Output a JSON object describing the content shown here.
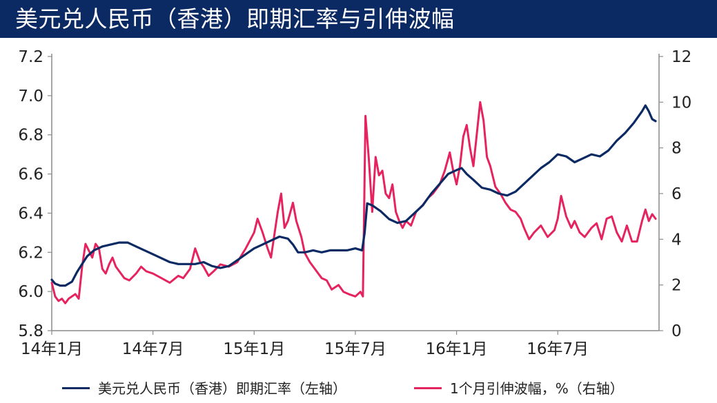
{
  "header": {
    "title": "美元兑人民币（香港）即期汇率与引伸波幅"
  },
  "colors": {
    "title_bg": "#0b2a63",
    "spot": "#0b2a63",
    "vol": "#e5245f",
    "axis": "#8a8a8a"
  },
  "chart_data": {
    "type": "line",
    "title": "美元兑人民币（香港）即期汇率与引伸波幅",
    "x_unit": "month",
    "x_start": "14年1月",
    "x_ticks": [
      "14年1月",
      "14年7月",
      "15年1月",
      "15年7月",
      "16年1月",
      "16年7月"
    ],
    "y_left": {
      "ticks": [
        "7.2",
        "7.0",
        "6.8",
        "6.6",
        "6.4",
        "6.2",
        "6.0",
        "5.8"
      ],
      "range": [
        5.8,
        7.2
      ]
    },
    "y_right": {
      "ticks": [
        "12",
        "10",
        "8",
        "6",
        "4",
        "2",
        "0"
      ],
      "range": [
        0,
        12
      ]
    },
    "series": [
      {
        "name": "美元兑人民币（香港）即期汇率（左轴）",
        "axis": "left",
        "points": [
          [
            0.0,
            6.06
          ],
          [
            0.2,
            6.04
          ],
          [
            0.5,
            6.03
          ],
          [
            0.8,
            6.03
          ],
          [
            1.2,
            6.05
          ],
          [
            1.5,
            6.1
          ],
          [
            1.8,
            6.14
          ],
          [
            2.1,
            6.18
          ],
          [
            2.5,
            6.21
          ],
          [
            3.0,
            6.23
          ],
          [
            3.5,
            6.24
          ],
          [
            4.0,
            6.25
          ],
          [
            4.5,
            6.25
          ],
          [
            5.0,
            6.23
          ],
          [
            5.5,
            6.21
          ],
          [
            6.0,
            6.19
          ],
          [
            6.5,
            6.17
          ],
          [
            7.0,
            6.15
          ],
          [
            7.5,
            6.14
          ],
          [
            8.0,
            6.14
          ],
          [
            8.5,
            6.14
          ],
          [
            9.0,
            6.15
          ],
          [
            9.5,
            6.13
          ],
          [
            10.0,
            6.12
          ],
          [
            10.5,
            6.13
          ],
          [
            11.0,
            6.16
          ],
          [
            11.5,
            6.19
          ],
          [
            12.0,
            6.22
          ],
          [
            12.5,
            6.24
          ],
          [
            13.0,
            6.26
          ],
          [
            13.5,
            6.28
          ],
          [
            14.0,
            6.27
          ],
          [
            14.3,
            6.24
          ],
          [
            14.6,
            6.2
          ],
          [
            15.0,
            6.2
          ],
          [
            15.5,
            6.21
          ],
          [
            16.0,
            6.2
          ],
          [
            16.5,
            6.21
          ],
          [
            17.0,
            6.21
          ],
          [
            17.5,
            6.21
          ],
          [
            18.0,
            6.22
          ],
          [
            18.4,
            6.21
          ],
          [
            18.55,
            6.3
          ],
          [
            18.7,
            6.45
          ],
          [
            19.0,
            6.44
          ],
          [
            19.5,
            6.41
          ],
          [
            20.0,
            6.37
          ],
          [
            20.5,
            6.35
          ],
          [
            21.0,
            6.36
          ],
          [
            21.5,
            6.4
          ],
          [
            22.0,
            6.44
          ],
          [
            22.5,
            6.5
          ],
          [
            23.0,
            6.55
          ],
          [
            23.5,
            6.6
          ],
          [
            24.0,
            6.62
          ],
          [
            24.3,
            6.63
          ],
          [
            24.6,
            6.6
          ],
          [
            25.0,
            6.57
          ],
          [
            25.5,
            6.53
          ],
          [
            26.0,
            6.52
          ],
          [
            26.5,
            6.5
          ],
          [
            27.0,
            6.49
          ],
          [
            27.5,
            6.51
          ],
          [
            28.0,
            6.55
          ],
          [
            28.5,
            6.59
          ],
          [
            29.0,
            6.63
          ],
          [
            29.5,
            6.66
          ],
          [
            30.0,
            6.7
          ],
          [
            30.5,
            6.69
          ],
          [
            31.0,
            6.66
          ],
          [
            31.5,
            6.68
          ],
          [
            32.0,
            6.7
          ],
          [
            32.5,
            6.69
          ],
          [
            33.0,
            6.72
          ],
          [
            33.5,
            6.77
          ],
          [
            34.0,
            6.81
          ],
          [
            34.5,
            6.86
          ],
          [
            35.0,
            6.92
          ],
          [
            35.2,
            6.95
          ],
          [
            35.4,
            6.92
          ],
          [
            35.6,
            6.88
          ],
          [
            35.8,
            6.87
          ]
        ]
      },
      {
        "name": "1个月引伸波幅，%（右轴）",
        "axis": "right",
        "points": [
          [
            0.0,
            2.1
          ],
          [
            0.2,
            1.5
          ],
          [
            0.4,
            1.3
          ],
          [
            0.6,
            1.4
          ],
          [
            0.8,
            1.2
          ],
          [
            1.0,
            1.4
          ],
          [
            1.2,
            1.5
          ],
          [
            1.4,
            1.6
          ],
          [
            1.6,
            1.4
          ],
          [
            1.8,
            2.8
          ],
          [
            2.0,
            3.8
          ],
          [
            2.2,
            3.5
          ],
          [
            2.4,
            3.2
          ],
          [
            2.6,
            3.8
          ],
          [
            2.8,
            3.6
          ],
          [
            3.0,
            2.7
          ],
          [
            3.2,
            2.5
          ],
          [
            3.4,
            2.9
          ],
          [
            3.6,
            3.2
          ],
          [
            3.8,
            2.8
          ],
          [
            4.0,
            2.6
          ],
          [
            4.3,
            2.3
          ],
          [
            4.6,
            2.2
          ],
          [
            5.0,
            2.5
          ],
          [
            5.3,
            2.8
          ],
          [
            5.6,
            2.6
          ],
          [
            6.0,
            2.5
          ],
          [
            6.5,
            2.3
          ],
          [
            7.0,
            2.1
          ],
          [
            7.5,
            2.4
          ],
          [
            7.8,
            2.3
          ],
          [
            8.2,
            2.7
          ],
          [
            8.5,
            3.6
          ],
          [
            8.8,
            3.0
          ],
          [
            9.0,
            2.8
          ],
          [
            9.3,
            2.4
          ],
          [
            9.6,
            2.6
          ],
          [
            10.0,
            2.9
          ],
          [
            10.5,
            2.8
          ],
          [
            11.0,
            3.0
          ],
          [
            11.5,
            3.6
          ],
          [
            12.0,
            4.3
          ],
          [
            12.2,
            4.9
          ],
          [
            12.5,
            4.3
          ],
          [
            12.8,
            3.6
          ],
          [
            13.0,
            3.2
          ],
          [
            13.2,
            4.2
          ],
          [
            13.4,
            5.2
          ],
          [
            13.6,
            6.0
          ],
          [
            13.8,
            4.5
          ],
          [
            14.0,
            4.8
          ],
          [
            14.3,
            5.6
          ],
          [
            14.5,
            4.8
          ],
          [
            14.8,
            4.1
          ],
          [
            15.0,
            3.4
          ],
          [
            15.3,
            3.0
          ],
          [
            15.6,
            2.7
          ],
          [
            16.0,
            2.3
          ],
          [
            16.3,
            2.2
          ],
          [
            16.6,
            1.8
          ],
          [
            17.0,
            2.0
          ],
          [
            17.3,
            1.7
          ],
          [
            17.6,
            1.6
          ],
          [
            18.0,
            1.5
          ],
          [
            18.3,
            1.7
          ],
          [
            18.45,
            1.5
          ],
          [
            18.6,
            9.4
          ],
          [
            18.8,
            7.5
          ],
          [
            19.0,
            5.2
          ],
          [
            19.2,
            7.6
          ],
          [
            19.4,
            6.8
          ],
          [
            19.6,
            7.0
          ],
          [
            19.8,
            6.0
          ],
          [
            20.0,
            5.8
          ],
          [
            20.2,
            6.4
          ],
          [
            20.4,
            5.2
          ],
          [
            20.6,
            4.8
          ],
          [
            20.8,
            4.5
          ],
          [
            21.0,
            4.8
          ],
          [
            21.3,
            4.6
          ],
          [
            21.6,
            5.2
          ],
          [
            22.0,
            5.5
          ],
          [
            22.3,
            5.8
          ],
          [
            22.6,
            6.0
          ],
          [
            23.0,
            6.4
          ],
          [
            23.3,
            7.0
          ],
          [
            23.6,
            7.8
          ],
          [
            23.8,
            7.0
          ],
          [
            24.0,
            6.4
          ],
          [
            24.2,
            7.2
          ],
          [
            24.4,
            8.5
          ],
          [
            24.6,
            9.0
          ],
          [
            24.8,
            8.0
          ],
          [
            25.0,
            7.2
          ],
          [
            25.2,
            8.6
          ],
          [
            25.4,
            10.0
          ],
          [
            25.6,
            9.2
          ],
          [
            25.8,
            7.6
          ],
          [
            26.0,
            7.2
          ],
          [
            26.3,
            6.3
          ],
          [
            26.6,
            6.0
          ],
          [
            26.9,
            5.6
          ],
          [
            27.2,
            5.3
          ],
          [
            27.5,
            5.2
          ],
          [
            27.8,
            4.9
          ],
          [
            28.0,
            4.5
          ],
          [
            28.3,
            4.0
          ],
          [
            28.6,
            4.3
          ],
          [
            29.0,
            4.6
          ],
          [
            29.4,
            4.1
          ],
          [
            29.8,
            4.4
          ],
          [
            30.0,
            4.9
          ],
          [
            30.2,
            5.9
          ],
          [
            30.5,
            5.0
          ],
          [
            30.8,
            4.5
          ],
          [
            31.0,
            4.8
          ],
          [
            31.3,
            4.3
          ],
          [
            31.6,
            4.1
          ],
          [
            32.0,
            4.5
          ],
          [
            32.3,
            4.7
          ],
          [
            32.6,
            4.0
          ],
          [
            32.9,
            4.9
          ],
          [
            33.2,
            5.0
          ],
          [
            33.5,
            4.3
          ],
          [
            33.8,
            3.9
          ],
          [
            34.1,
            4.6
          ],
          [
            34.4,
            3.9
          ],
          [
            34.7,
            3.9
          ],
          [
            35.0,
            4.8
          ],
          [
            35.2,
            5.3
          ],
          [
            35.4,
            4.8
          ],
          [
            35.6,
            5.1
          ],
          [
            35.8,
            4.9
          ]
        ]
      }
    ]
  },
  "legend": {
    "spot_label": "美元兑人民币（香港）即期汇率（左轴）",
    "vol_label": "1个月引伸波幅，%（右轴）"
  }
}
